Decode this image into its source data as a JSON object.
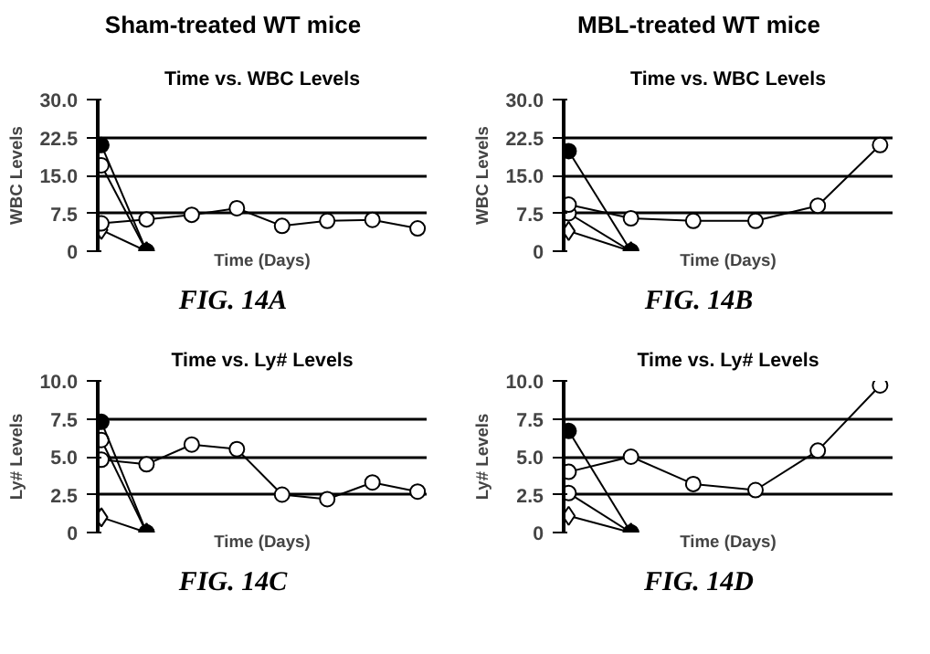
{
  "chart_data": [
    {
      "type": "line",
      "title": "Time vs. WBC Levels",
      "annotations": [
        "Sham-treated WT mice",
        "FIG. 14A"
      ],
      "xlabel": "Time (Days)",
      "ylabel": "WBC Levels",
      "categories": [
        null,
        null,
        null,
        null,
        null,
        null,
        null,
        null
      ],
      "ylim": [
        0,
        30
      ],
      "yticks": [
        0,
        7.5,
        {
          "value": 15,
          "label": "15.0"
        },
        22.5,
        {
          "value": 30,
          "label": "30.0"
        }
      ],
      "grid": "y",
      "tick_labels": "y",
      "line_style": "solid",
      "series": [
        {
          "color": "#ffffff",
          "marker": "circle",
          "values": [
            5.5,
            6.3,
            7.2,
            8.5,
            5.0,
            6.0,
            6.2,
            4.5
          ]
        },
        {
          "color": "#ffffff",
          "marker": "circle",
          "values": [
            17,
            0,
            null,
            null,
            null,
            null,
            null,
            null
          ]
        },
        {
          "color": "#ffffff",
          "marker": "diamond",
          "values": [
            4.2,
            0,
            null,
            null,
            null,
            null,
            null,
            null
          ]
        },
        {
          "color": "#000000",
          "marker": "circle",
          "values": [
            21,
            0,
            null,
            null,
            null,
            null,
            null,
            null
          ]
        }
      ]
    },
    {
      "type": "line",
      "title": "Time vs. WBC Levels",
      "annotations": [
        "MBL-treated WT mice",
        "FIG. 14B"
      ],
      "xlabel": "Time (Days)",
      "ylabel": "WBC Levels",
      "categories": [
        null,
        null,
        null,
        null,
        null,
        null
      ],
      "ylim": [
        0,
        30
      ],
      "yticks": [
        0,
        7.5,
        {
          "value": 15,
          "label": "15.0"
        },
        22.5,
        {
          "value": 30,
          "label": "30.0"
        }
      ],
      "grid": "y",
      "tick_labels": "y",
      "line_style": "solid",
      "series": [
        {
          "color": "#ffffff",
          "marker": "circle",
          "values": [
            9.2,
            6.5,
            6.0,
            6.0,
            9.0,
            21.0
          ]
        },
        {
          "color": "#ffffff",
          "marker": "circle",
          "values": [
            7.5,
            0,
            null,
            null,
            null,
            null
          ]
        },
        {
          "color": "#ffffff",
          "marker": "diamond",
          "values": [
            4.0,
            0,
            null,
            null,
            null,
            null
          ]
        },
        {
          "color": "#000000",
          "marker": "circle",
          "values": [
            19.8,
            0,
            null,
            null,
            null,
            null
          ]
        }
      ]
    },
    {
      "type": "line",
      "title": "Time vs. Ly# Levels",
      "annotations": [
        "FIG. 14C"
      ],
      "xlabel": "Time (Days)",
      "ylabel": "Ly# Levels",
      "categories": [
        null,
        null,
        null,
        null,
        null,
        null,
        null,
        null
      ],
      "ylim": [
        0,
        10
      ],
      "yticks": [
        0,
        2.5,
        {
          "value": 5,
          "label": "5.0"
        },
        7.5,
        {
          "value": 10,
          "label": "10.0"
        }
      ],
      "grid": "y",
      "tick_labels": "y",
      "line_style": "solid",
      "series": [
        {
          "color": "#ffffff",
          "marker": "circle",
          "values": [
            4.8,
            4.5,
            5.8,
            5.5,
            2.5,
            2.2,
            3.3,
            2.7
          ]
        },
        {
          "color": "#ffffff",
          "marker": "circle",
          "values": [
            6.1,
            0,
            null,
            null,
            null,
            null,
            null,
            null
          ]
        },
        {
          "color": "#ffffff",
          "marker": "diamond",
          "values": [
            1.0,
            0,
            null,
            null,
            null,
            null,
            null,
            null
          ]
        },
        {
          "color": "#000000",
          "marker": "circle",
          "values": [
            7.3,
            0,
            null,
            null,
            null,
            null,
            null,
            null
          ]
        }
      ]
    },
    {
      "type": "line",
      "title": "Time vs. Ly# Levels",
      "annotations": [
        "FIG. 14D"
      ],
      "xlabel": "Time (Days)",
      "ylabel": "Ly# Levels",
      "categories": [
        null,
        null,
        null,
        null,
        null,
        null
      ],
      "ylim": [
        0,
        10
      ],
      "yticks": [
        0,
        2.5,
        {
          "value": 5,
          "label": "5.0"
        },
        7.5,
        {
          "value": 10,
          "label": "10.0"
        }
      ],
      "grid": "y",
      "tick_labels": "y",
      "line_style": "solid",
      "series": [
        {
          "color": "#ffffff",
          "marker": "circle",
          "values": [
            4.0,
            5.0,
            3.2,
            2.8,
            5.4,
            9.7
          ]
        },
        {
          "color": "#ffffff",
          "marker": "circle",
          "values": [
            2.6,
            0,
            null,
            null,
            null,
            null
          ]
        },
        {
          "color": "#ffffff",
          "marker": "diamond",
          "values": [
            1.1,
            0,
            null,
            null,
            null,
            null
          ]
        },
        {
          "color": "#000000",
          "marker": "circle",
          "values": [
            6.7,
            0,
            null,
            null,
            null,
            null
          ]
        }
      ]
    }
  ]
}
